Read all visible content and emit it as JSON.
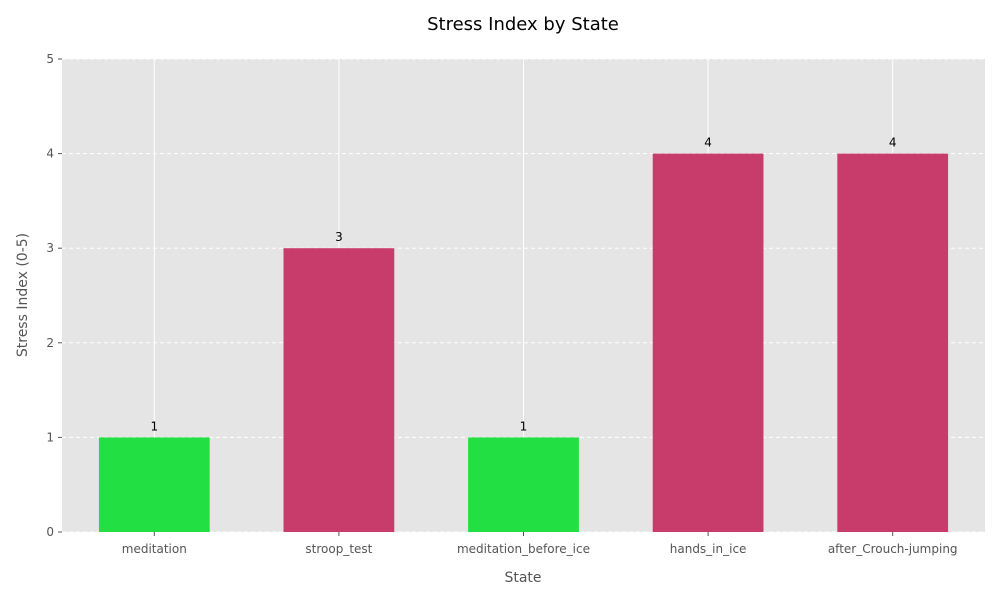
{
  "chart_data": {
    "type": "bar",
    "title": "Stress Index by State",
    "xlabel": "State",
    "ylabel": "Stress Index (0-5)",
    "categories": [
      "meditation",
      "stroop_test",
      "meditation_before_ice",
      "hands_in_ice",
      "after_Crouch-jumping"
    ],
    "values": [
      1,
      3,
      1,
      4,
      4
    ],
    "data_labels": [
      "1",
      "3",
      "1",
      "4",
      "4"
    ],
    "ylim": [
      0,
      5
    ],
    "yticks": [
      0,
      1,
      2,
      3,
      4,
      5
    ],
    "ytick_labels": [
      "0",
      "1",
      "2",
      "3",
      "4",
      "5"
    ],
    "grid": true,
    "colors": {
      "low": "#22e043",
      "high": "#c73c6a",
      "background": "#e5e5e5",
      "grid": "#ffffff"
    },
    "bar_colors": [
      "#22e043",
      "#c73c6a",
      "#22e043",
      "#c73c6a",
      "#c73c6a"
    ]
  }
}
